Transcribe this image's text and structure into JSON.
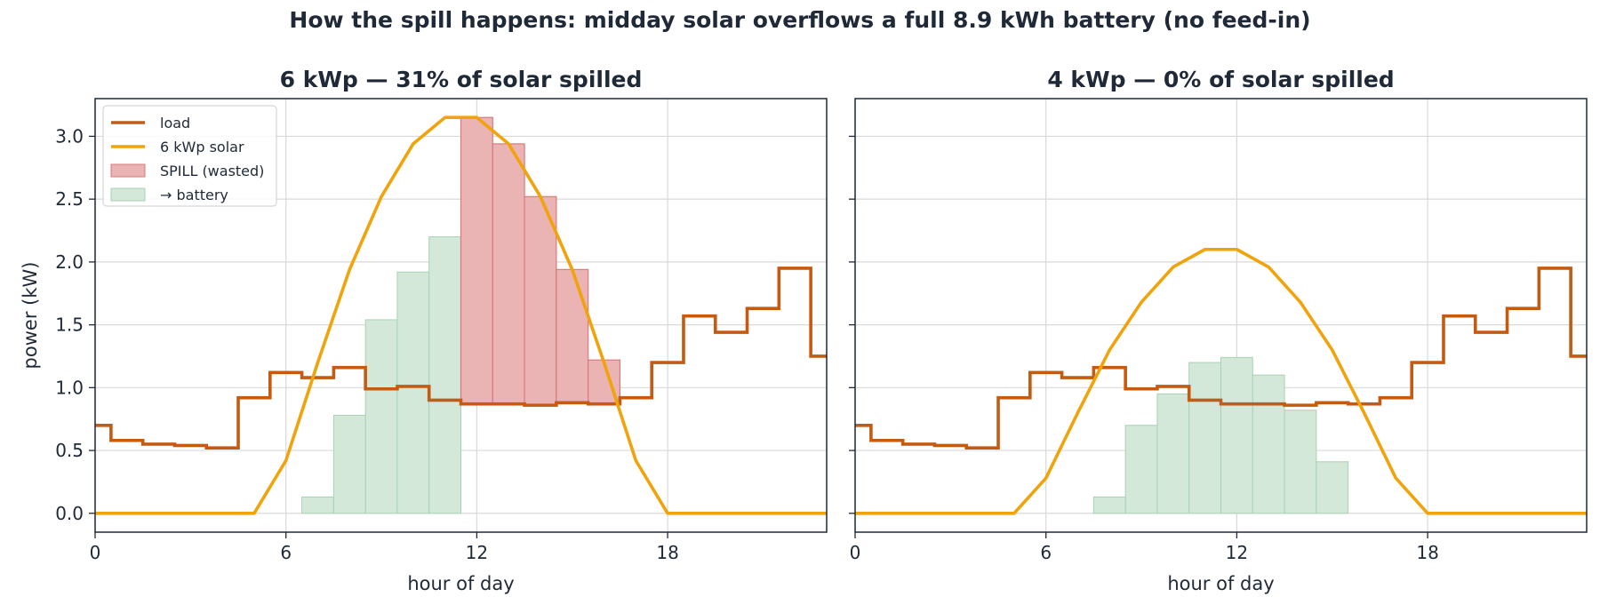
{
  "figure": {
    "title": "How the spill happens: midday solar overflows a full 8.9 kWh battery (no feed-in)"
  },
  "colors": {
    "load": "#c55a11",
    "solar": "#f0a30a",
    "spill_fill": "#ebb4b4",
    "spill_edge": "#d97a7a",
    "battery_fill": "#d4e8da",
    "battery_edge": "#a8d1b4",
    "grid": "#d9d9d9",
    "axis": "#1f2937"
  },
  "chart_data": [
    {
      "type": "line",
      "title": "6 kWp — 31% of solar spilled",
      "xlabel": "hour of day",
      "ylabel": "power (kW)",
      "xlim": [
        0,
        23
      ],
      "ylim": [
        -0.15,
        3.3
      ],
      "xticks": [
        0,
        6,
        12,
        18
      ],
      "yticks": [
        0.0,
        0.5,
        1.0,
        1.5,
        2.0,
        2.5,
        3.0
      ],
      "grid": true,
      "legend": {
        "placement": "top-left",
        "entries": [
          {
            "label": "load",
            "kind": "line",
            "series": "load"
          },
          {
            "label": "6 kWp solar",
            "kind": "line",
            "series": "solar"
          },
          {
            "label": "SPILL (wasted)",
            "kind": "patch",
            "series": "spill"
          },
          {
            "label": "→ battery",
            "kind": "patch",
            "series": "battery"
          }
        ]
      },
      "hours": [
        0.5,
        1.5,
        2.5,
        3.5,
        4.5,
        5.5,
        6.5,
        7.5,
        8.5,
        9.5,
        10.5,
        11.5,
        12.5,
        13.5,
        14.5,
        15.5,
        16.5,
        17.5,
        18.5,
        19.5,
        20.5,
        21.5,
        22.5
      ],
      "load": [
        0.58,
        0.55,
        0.54,
        0.52,
        0.92,
        1.12,
        1.08,
        1.16,
        0.99,
        1.01,
        0.9,
        0.87,
        0.87,
        0.86,
        0.88,
        0.87,
        0.92,
        1.2,
        1.57,
        1.44,
        1.63,
        1.95,
        1.25
      ],
      "load_start": 0.7,
      "solar_x": [
        0,
        1,
        2,
        3,
        4,
        5,
        6,
        7,
        8,
        9,
        10,
        11,
        12,
        13,
        14,
        15,
        16,
        17,
        18,
        19,
        20,
        21,
        22,
        23
      ],
      "solar": [
        0,
        0,
        0,
        0,
        0,
        0,
        0.42,
        1.2,
        1.94,
        2.52,
        2.94,
        3.15,
        3.15,
        2.94,
        2.52,
        1.94,
        1.2,
        0.42,
        0,
        0,
        0,
        0,
        0,
        0
      ],
      "to_battery": [
        0,
        0,
        0,
        0,
        0,
        0,
        0.13,
        0.78,
        1.54,
        1.92,
        2.2,
        0,
        0,
        0,
        0,
        0,
        0,
        0,
        0,
        0,
        0,
        0,
        0
      ],
      "spill": [
        0,
        0,
        0,
        0,
        0,
        0,
        0,
        0,
        0,
        0,
        0,
        3.15,
        2.94,
        2.52,
        1.94,
        1.22,
        0,
        0,
        0,
        0,
        0,
        0,
        0
      ]
    },
    {
      "type": "line",
      "title": "4 kWp — 0% of solar spilled",
      "xlabel": "hour of day",
      "ylabel": "",
      "xlim": [
        0,
        23
      ],
      "ylim": [
        -0.15,
        3.3
      ],
      "xticks": [
        0,
        6,
        12,
        18
      ],
      "yticks": [
        0.0,
        0.5,
        1.0,
        1.5,
        2.0,
        2.5,
        3.0
      ],
      "grid": true,
      "hours": [
        0.5,
        1.5,
        2.5,
        3.5,
        4.5,
        5.5,
        6.5,
        7.5,
        8.5,
        9.5,
        10.5,
        11.5,
        12.5,
        13.5,
        14.5,
        15.5,
        16.5,
        17.5,
        18.5,
        19.5,
        20.5,
        21.5,
        22.5
      ],
      "load": [
        0.58,
        0.55,
        0.54,
        0.52,
        0.92,
        1.12,
        1.08,
        1.16,
        0.99,
        1.01,
        0.9,
        0.87,
        0.87,
        0.86,
        0.88,
        0.87,
        0.92,
        1.2,
        1.57,
        1.44,
        1.63,
        1.95,
        1.25
      ],
      "load_start": 0.7,
      "solar_x": [
        0,
        1,
        2,
        3,
        4,
        5,
        6,
        7,
        8,
        9,
        10,
        11,
        12,
        13,
        14,
        15,
        16,
        17,
        18,
        19,
        20,
        21,
        22,
        23
      ],
      "solar": [
        0,
        0,
        0,
        0,
        0,
        0,
        0.28,
        0.8,
        1.3,
        1.68,
        1.96,
        2.1,
        2.1,
        1.96,
        1.68,
        1.3,
        0.8,
        0.28,
        0,
        0,
        0,
        0,
        0,
        0
      ],
      "to_battery": [
        0,
        0,
        0,
        0,
        0,
        0,
        0,
        0.13,
        0.7,
        0.95,
        1.2,
        1.24,
        1.1,
        0.82,
        0.41,
        0,
        0,
        0,
        0,
        0,
        0,
        0,
        0
      ],
      "spill": [
        0,
        0,
        0,
        0,
        0,
        0,
        0,
        0,
        0,
        0,
        0,
        0,
        0,
        0,
        0,
        0,
        0,
        0,
        0,
        0,
        0,
        0,
        0
      ]
    }
  ]
}
